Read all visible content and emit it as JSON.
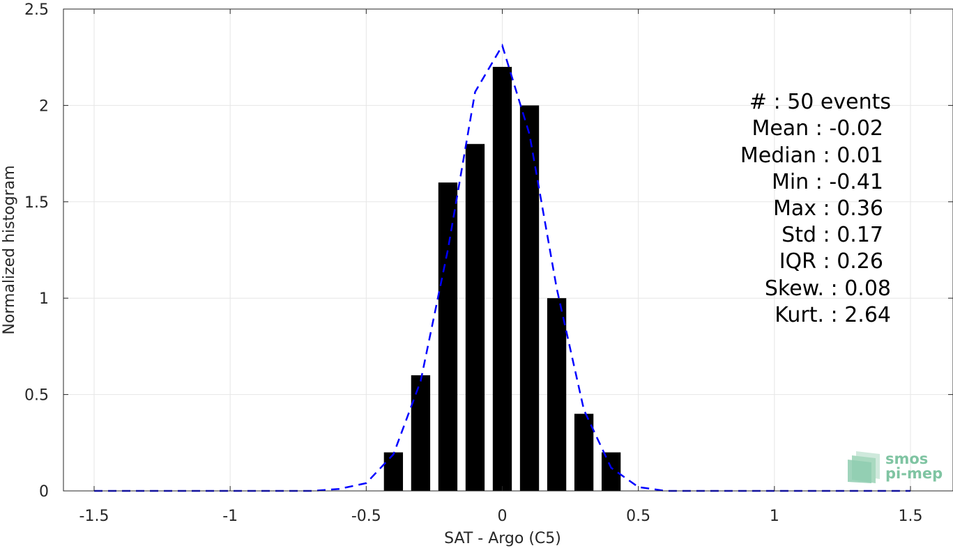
{
  "chart_data": {
    "type": "bar",
    "xlabel": "SAT - Argo (C5)",
    "ylabel": "Normalized histogram",
    "xlim": [
      -1.5,
      1.5
    ],
    "ylim": [
      0,
      2.5
    ],
    "x_ticks": [
      "-1.5",
      "-1",
      "-0.5",
      "0",
      "0.5",
      "1",
      "1.5"
    ],
    "y_ticks": [
      "0",
      "0.5",
      "1",
      "1.5",
      "2",
      "2.5"
    ],
    "grid": true,
    "bars": {
      "x": [
        -0.4,
        -0.3,
        -0.2,
        -0.1,
        0.0,
        0.1,
        0.2,
        0.3,
        0.4
      ],
      "values": [
        0.2,
        0.6,
        1.6,
        1.8,
        2.2,
        2.0,
        1.0,
        0.4,
        0.2
      ],
      "width": 0.07,
      "color": "#000000"
    },
    "fit_curve": {
      "style": "dashed",
      "color": "#0000ff",
      "x": [
        -1.5,
        -1.4,
        -1.3,
        -1.2,
        -1.1,
        -1.0,
        -0.9,
        -0.8,
        -0.7,
        -0.6,
        -0.5,
        -0.4,
        -0.3,
        -0.2,
        -0.1,
        0.0,
        0.1,
        0.2,
        0.3,
        0.4,
        0.5,
        0.6,
        0.7,
        0.8,
        0.9,
        1.0,
        1.1,
        1.2,
        1.3,
        1.4,
        1.5
      ],
      "y": [
        0,
        0,
        0,
        0,
        0,
        0,
        0,
        0,
        0,
        0.01,
        0.04,
        0.19,
        0.57,
        1.25,
        2.07,
        2.31,
        1.85,
        1.05,
        0.42,
        0.12,
        0.02,
        0,
        0,
        0,
        0,
        0,
        0,
        0,
        0,
        0,
        0
      ]
    },
    "stats": [
      "#  : 50 events",
      "Mean : -0.02",
      "Median : 0.01",
      "Min : -0.41",
      "Max : 0.36",
      "Std : 0.17",
      "IQR : 0.26",
      "Skew. : 0.08",
      "Kurt. : 2.64"
    ]
  },
  "logo": {
    "line1": "smos",
    "line2": "pi-mep"
  }
}
